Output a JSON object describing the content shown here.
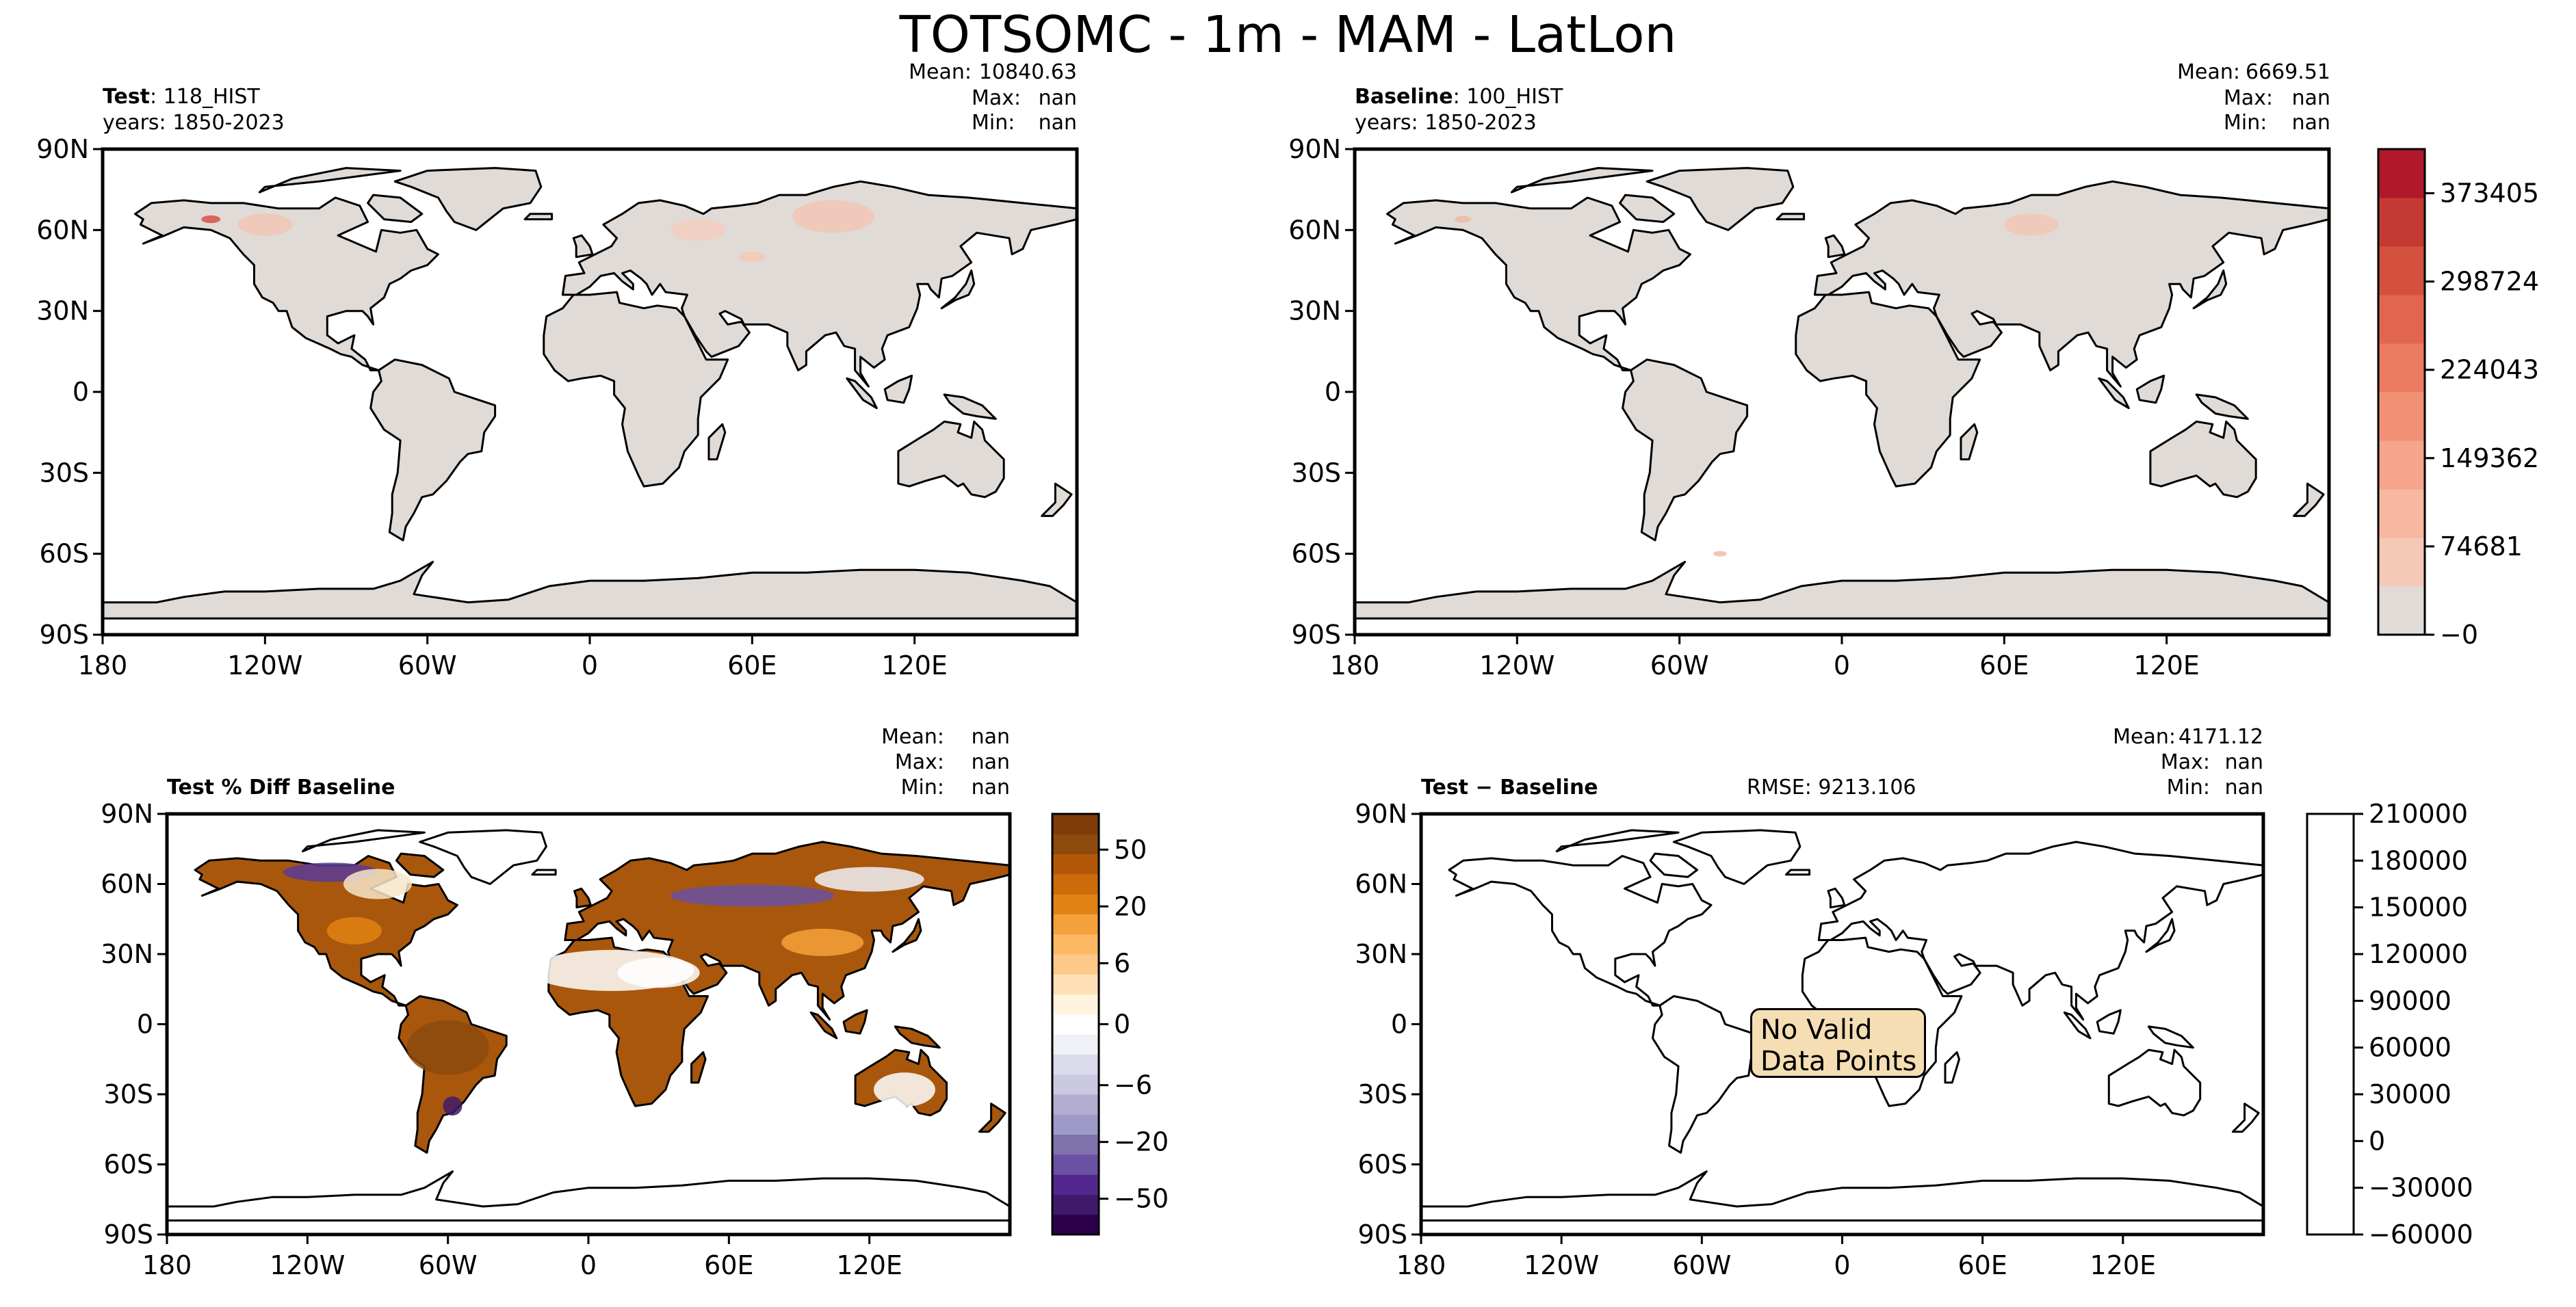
{
  "figure": {
    "title": "TOTSOMC - 1m - MAM - LatLon"
  },
  "panels": {
    "test": {
      "label_key": "Test",
      "label_sep": ": ",
      "label_value": "118_HIST",
      "years": "years: 1850-2023",
      "stats": {
        "mean_label": "Mean:",
        "mean": "10840.63",
        "max_label": "Max:",
        "max": "nan",
        "min_label": "Min:",
        "min": "nan"
      }
    },
    "baseline": {
      "label_key": "Baseline",
      "label_sep": ": ",
      "label_value": "100_HIST",
      "years": "years: 1850-2023",
      "stats": {
        "mean_label": "Mean:",
        "mean": "6669.51",
        "max_label": "Max:",
        "max": "nan",
        "min_label": "Min:",
        "min": "nan"
      }
    },
    "pct_diff": {
      "title": "Test % Diff Baseline",
      "stats": {
        "mean_label": "Mean:",
        "mean": "nan",
        "max_label": "Max:",
        "max": "nan",
        "min_label": "Min:",
        "min": "nan"
      }
    },
    "diff": {
      "title_left": "Test",
      "title_op": " − ",
      "title_right": "Baseline",
      "rmse": "RMSE: 9213.106",
      "stats": {
        "mean_label": "Mean:",
        "mean": "4171.12",
        "max_label": "Max:",
        "max": "nan",
        "min_label": "Min:",
        "min": "nan"
      },
      "no_data_line1": "No Valid",
      "no_data_line2": "Data Points"
    }
  },
  "axes": {
    "lat_ticks": [
      "90N",
      "60N",
      "30N",
      "0",
      "30S",
      "60S",
      "90S"
    ],
    "lon_ticks": [
      "180",
      "120W",
      "60W",
      "0",
      "60E",
      "120E"
    ]
  },
  "colors": {
    "land_base": "#e0dbd7",
    "abs_scale": [
      "#e0dbd7",
      "#f4c9b6",
      "#f7b8a0",
      "#f6a48b",
      "#f29076",
      "#ec7c61",
      "#e2664f",
      "#d4503f",
      "#c43931",
      "#b2182b"
    ],
    "pct_scale": [
      "#2d004b",
      "#3f1a6b",
      "#54278f",
      "#6a51a3",
      "#8073ac",
      "#9e9ac8",
      "#b2abd2",
      "#cbc9e2",
      "#dadaeb",
      "#f0f0f7",
      "#ffffff",
      "#fff3e0",
      "#fee0b6",
      "#fdc88a",
      "#fdb863",
      "#f5a13b",
      "#e08214",
      "#cc6b0c",
      "#b35806",
      "#8c4a0d",
      "#7f3b08"
    ],
    "brown": "#a9570c"
  },
  "chart_data": [
    {
      "type": "heatmap",
      "title": "Test: 118_HIST",
      "subtitle": "years: 1850-2023",
      "xlabel": "",
      "ylabel": "",
      "xlim": [
        -180,
        180
      ],
      "ylim": [
        -90,
        90
      ],
      "stats": {
        "mean": 10840.63,
        "max": "nan",
        "min": "nan"
      },
      "colorbar": null
    },
    {
      "type": "heatmap",
      "title": "Baseline: 100_HIST",
      "subtitle": "years: 1850-2023",
      "xlabel": "",
      "ylabel": "",
      "xlim": [
        -180,
        180
      ],
      "ylim": [
        -90,
        90
      ],
      "stats": {
        "mean": 6669.51,
        "max": "nan",
        "min": "nan"
      },
      "colorbar": {
        "ticks": [
          373405,
          298724,
          224043,
          149362,
          74681,
          0
        ],
        "tick_labels": [
          "373405",
          "298724",
          "224043",
          "149362",
          "74681",
          "−0"
        ],
        "range": [
          0,
          410745
        ]
      }
    },
    {
      "type": "heatmap",
      "title": "Test % Diff Baseline",
      "xlabel": "",
      "ylabel": "",
      "xlim": [
        -180,
        180
      ],
      "ylim": [
        -90,
        90
      ],
      "stats": {
        "mean": "nan",
        "max": "nan",
        "min": "nan"
      },
      "colorbar": {
        "ticks": [
          50,
          20,
          6,
          0,
          -6,
          -20,
          -50
        ],
        "tick_labels": [
          "50",
          "20",
          "6",
          "0",
          "−6",
          "−20",
          "−50"
        ]
      }
    },
    {
      "type": "heatmap",
      "title": "Test − Baseline",
      "annotation": "No Valid Data Points",
      "rmse": 9213.106,
      "xlabel": "",
      "ylabel": "",
      "xlim": [
        -180,
        180
      ],
      "ylim": [
        -90,
        90
      ],
      "stats": {
        "mean": 4171.12,
        "max": "nan",
        "min": "nan"
      },
      "colorbar": {
        "ticks": [
          210000,
          180000,
          150000,
          120000,
          90000,
          60000,
          30000,
          0,
          -30000,
          -60000
        ],
        "tick_labels": [
          "210000",
          "180000",
          "150000",
          "120000",
          "90000",
          "60000",
          "30000",
          "0",
          "−30000",
          "−60000"
        ],
        "range": [
          -60000,
          210000
        ]
      }
    }
  ]
}
